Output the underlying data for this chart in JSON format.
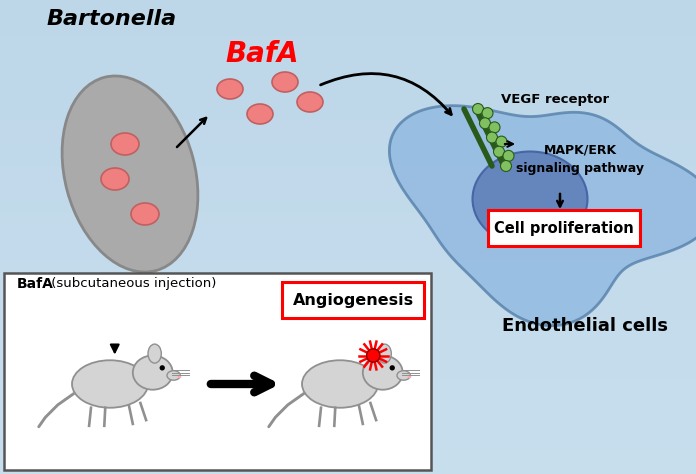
{
  "bg_color": "#c8dce8",
  "title": "Bartonella",
  "bafa_label": "BafA",
  "bafa_color": "#ff0000",
  "vegf_label": "VEGF receptor",
  "mapk_label": "MAPK/ERK\nsignaling pathway",
  "cell_prolif_label": "Cell proliferation",
  "endothelial_label": "Endothelial cells",
  "bafa_injection_label_bold": "BafA",
  "bafa_injection_label_normal": " (subcutaneous injection)",
  "angiogenesis_label": "Angiogenesis",
  "bacterium_fill": "#aaaaaa",
  "bacterium_edge": "#888888",
  "bafa_particle_fill": "#f08080",
  "bafa_particle_edge": "#c06060",
  "receptor_green_dark": "#2a5a1a",
  "receptor_ball": "#80c060",
  "cell_fill": "#8fb8e0",
  "cell_edge": "#5580aa",
  "nucleus_fill": "#6080b8",
  "nucleus_edge": "#4060a0",
  "box_lower_edge": "#555555",
  "mouse_fill": "#d4d4d4",
  "mouse_edge": "#909090",
  "lesion_color": "#cc0000",
  "arrow_color": "#111111"
}
